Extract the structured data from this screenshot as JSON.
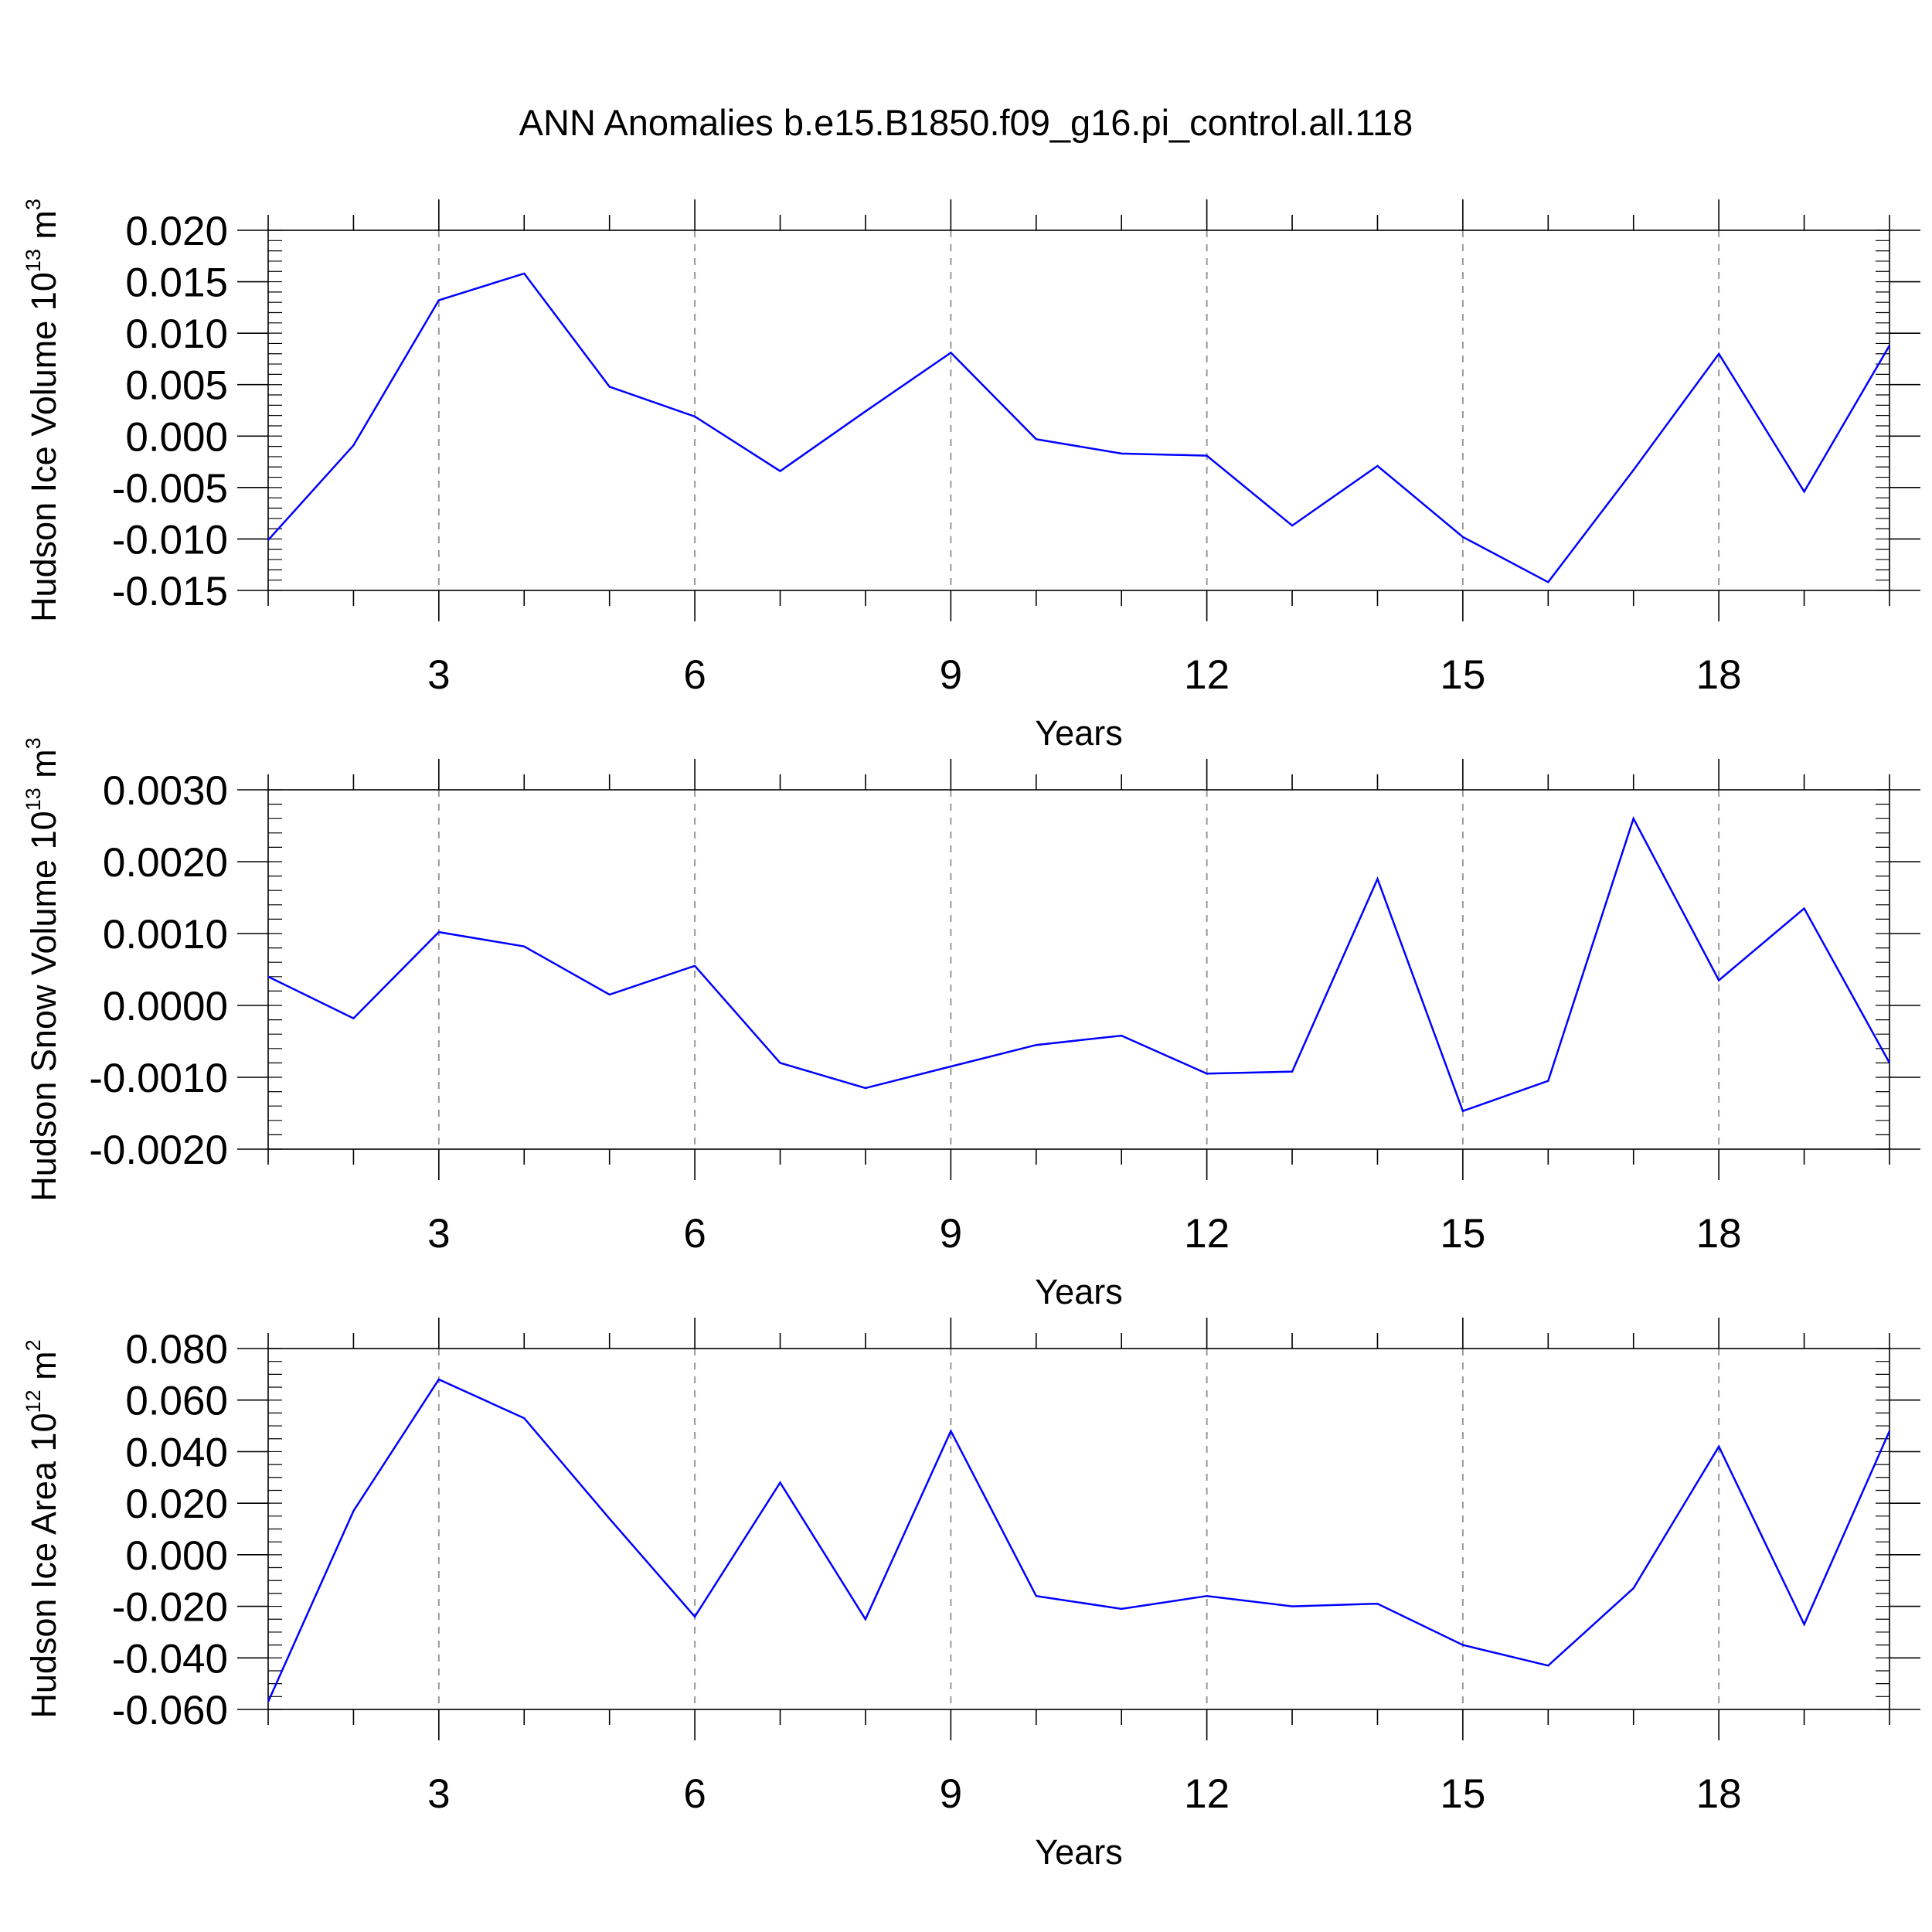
{
  "title": "ANN Anomalies b.e15.B1850.f09_g16.pi_control.all.118",
  "chart_data": [
    {
      "type": "line",
      "xlabel": "Years",
      "ylabel": {
        "main": "Hudson Ice Volume 10",
        "sup": "13",
        "tail": " m",
        "unit_sup": "3"
      },
      "xlim": [
        1,
        20
      ],
      "ylim": [
        -0.015,
        0.02
      ],
      "x_ticks": [
        3,
        6,
        9,
        12,
        15,
        18
      ],
      "x_tick_labels": [
        "3",
        "6",
        "9",
        "12",
        "15",
        "18"
      ],
      "y_ticks": [
        -0.015,
        -0.01,
        -0.005,
        0.0,
        0.005,
        0.01,
        0.015,
        0.02
      ],
      "y_tick_labels": [
        "-0.015",
        "-0.010",
        "-0.005",
        "0.000",
        "0.005",
        "0.010",
        "0.015",
        "0.020"
      ],
      "y_minor_step": 0.001,
      "grid": "x-dashed",
      "color": "#0000ff",
      "x": [
        1,
        2,
        3,
        4,
        5,
        6,
        7,
        8,
        9,
        10,
        11,
        12,
        13,
        14,
        15,
        16,
        17,
        18,
        19,
        20
      ],
      "values": [
        -0.0101,
        -0.0009,
        0.0132,
        0.0158,
        0.0048,
        0.0019,
        -0.0034,
        0.0024,
        0.0081,
        -0.0003,
        -0.0017,
        -0.0019,
        -0.0087,
        -0.0029,
        -0.0098,
        -0.0142,
        -0.0033,
        0.008,
        -0.0054,
        0.0088
      ]
    },
    {
      "type": "line",
      "xlabel": "Years",
      "ylabel": {
        "main": "Hudson Snow Volume 10",
        "sup": "13",
        "tail": " m",
        "unit_sup": "3"
      },
      "xlim": [
        1,
        20
      ],
      "ylim": [
        -0.002,
        0.003
      ],
      "x_ticks": [
        3,
        6,
        9,
        12,
        15,
        18
      ],
      "x_tick_labels": [
        "3",
        "6",
        "9",
        "12",
        "15",
        "18"
      ],
      "y_ticks": [
        -0.002,
        -0.001,
        0.0,
        0.001,
        0.002,
        0.003
      ],
      "y_tick_labels": [
        "-0.0020",
        "-0.0010",
        "0.0000",
        "0.0010",
        "0.0020",
        "0.0030"
      ],
      "y_minor_step": 0.0002,
      "grid": "x-dashed",
      "color": "#0000ff",
      "x": [
        1,
        2,
        3,
        4,
        5,
        6,
        7,
        8,
        9,
        10,
        11,
        12,
        13,
        14,
        15,
        16,
        17,
        18,
        19,
        20
      ],
      "values": [
        0.0004,
        -0.00018,
        0.00102,
        0.00082,
        0.00015,
        0.00055,
        -0.0008,
        -0.00115,
        -0.00085,
        -0.00055,
        -0.00042,
        -0.00095,
        -0.00092,
        0.00176,
        -0.00147,
        -0.00105,
        0.0026,
        0.00035,
        0.00135,
        -0.0008
      ]
    },
    {
      "type": "line",
      "xlabel": "Years",
      "ylabel": {
        "main": "Hudson Ice Area 10",
        "sup": "12",
        "tail": " m",
        "unit_sup": "2"
      },
      "xlim": [
        1,
        20
      ],
      "ylim": [
        -0.06,
        0.08
      ],
      "x_ticks": [
        3,
        6,
        9,
        12,
        15,
        18
      ],
      "x_tick_labels": [
        "3",
        "6",
        "9",
        "12",
        "15",
        "18"
      ],
      "y_ticks": [
        -0.06,
        -0.04,
        -0.02,
        0.0,
        0.02,
        0.04,
        0.06,
        0.08
      ],
      "y_tick_labels": [
        "-0.060",
        "-0.040",
        "-0.020",
        "0.000",
        "0.020",
        "0.040",
        "0.060",
        "0.080"
      ],
      "y_minor_step": 0.005,
      "grid": "x-dashed",
      "color": "#0000ff",
      "x": [
        1,
        2,
        3,
        4,
        5,
        6,
        7,
        8,
        9,
        10,
        11,
        12,
        13,
        14,
        15,
        16,
        17,
        18,
        19,
        20
      ],
      "values": [
        -0.057,
        0.017,
        0.068,
        0.053,
        0.014,
        -0.024,
        0.028,
        -0.025,
        0.048,
        -0.016,
        -0.021,
        -0.016,
        -0.02,
        -0.019,
        -0.035,
        -0.043,
        -0.013,
        0.042,
        -0.027,
        0.048
      ]
    }
  ]
}
